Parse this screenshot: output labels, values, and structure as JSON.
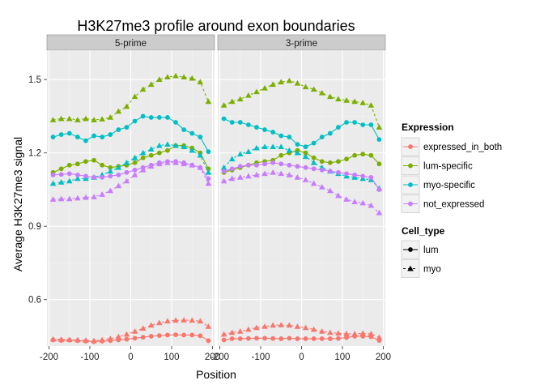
{
  "chart_data": {
    "type": "line",
    "title": "H3K27me3 profile around exon boundaries",
    "xlabel": "Position",
    "ylabel": "Average H3K27me3 signal",
    "xlim": [
      -205,
      205
    ],
    "ylim": [
      0.41,
      1.62
    ],
    "x_ticks": [
      -200,
      -100,
      0,
      100,
      200
    ],
    "x_tick_labels": [
      "-200",
      "-100",
      "0",
      "100",
      "200"
    ],
    "y_ticks": [
      0.6,
      0.9,
      1.2,
      1.5
    ],
    "y_tick_labels": [
      "0.6",
      "0.9",
      "1.2",
      "1.5"
    ],
    "grid": true,
    "panels": [
      "5-prime",
      "3-prime"
    ],
    "x": [
      -190,
      -170,
      -150,
      -130,
      -110,
      -90,
      -70,
      -50,
      -30,
      -10,
      10,
      30,
      50,
      70,
      90,
      110,
      130,
      150,
      170,
      190
    ],
    "legend_expression": {
      "title": "Expression",
      "entries": [
        {
          "label": "expressed_in_both",
          "color": "#F8766D"
        },
        {
          "label": "lum-specific",
          "color": "#7CAE00"
        },
        {
          "label": "myo-specific",
          "color": "#00BFC4"
        },
        {
          "label": "not_expressed",
          "color": "#C77CFF"
        }
      ]
    },
    "legend_cell_type": {
      "title": "Cell_type",
      "entries": [
        {
          "label": "lum",
          "shape": "circle",
          "linetype": "solid"
        },
        {
          "label": "myo",
          "shape": "triangle",
          "linetype": "dashed"
        }
      ]
    },
    "series": [
      {
        "panel": "5-prime",
        "expression": "expressed_in_both",
        "cell_type": "lum",
        "values": [
          0.435,
          0.433,
          0.434,
          0.432,
          0.43,
          0.428,
          0.43,
          0.432,
          0.435,
          0.438,
          0.442,
          0.446,
          0.45,
          0.453,
          0.455,
          0.456,
          0.455,
          0.455,
          0.452,
          0.432
        ]
      },
      {
        "panel": "5-prime",
        "expression": "expressed_in_both",
        "cell_type": "myo",
        "values": [
          0.438,
          0.437,
          0.436,
          0.435,
          0.433,
          0.432,
          0.435,
          0.44,
          0.448,
          0.458,
          0.47,
          0.482,
          0.495,
          0.505,
          0.512,
          0.515,
          0.516,
          0.515,
          0.512,
          0.49
        ]
      },
      {
        "panel": "5-prime",
        "expression": "lum-specific",
        "cell_type": "lum",
        "values": [
          1.12,
          1.135,
          1.15,
          1.155,
          1.165,
          1.17,
          1.15,
          1.14,
          1.145,
          1.15,
          1.16,
          1.18,
          1.19,
          1.2,
          1.21,
          1.23,
          1.23,
          1.22,
          1.2,
          1.135
        ]
      },
      {
        "panel": "5-prime",
        "expression": "lum-specific",
        "cell_type": "myo",
        "values": [
          1.335,
          1.34,
          1.34,
          1.335,
          1.34,
          1.335,
          1.338,
          1.345,
          1.37,
          1.39,
          1.43,
          1.46,
          1.48,
          1.5,
          1.51,
          1.515,
          1.51,
          1.505,
          1.49,
          1.41
        ]
      },
      {
        "panel": "5-prime",
        "expression": "myo-specific",
        "cell_type": "lum",
        "values": [
          1.265,
          1.275,
          1.28,
          1.265,
          1.25,
          1.27,
          1.265,
          1.275,
          1.295,
          1.305,
          1.33,
          1.35,
          1.345,
          1.345,
          1.345,
          1.325,
          1.295,
          1.28,
          1.265,
          1.205
        ]
      },
      {
        "panel": "5-prime",
        "expression": "myo-specific",
        "cell_type": "myo",
        "values": [
          1.075,
          1.08,
          1.085,
          1.095,
          1.095,
          1.1,
          1.11,
          1.125,
          1.14,
          1.16,
          1.18,
          1.2,
          1.215,
          1.23,
          1.235,
          1.23,
          1.225,
          1.21,
          1.19,
          1.12
        ]
      },
      {
        "panel": "5-prime",
        "expression": "not_expressed",
        "cell_type": "lum",
        "values": [
          1.11,
          1.112,
          1.115,
          1.11,
          1.105,
          1.1,
          1.1,
          1.105,
          1.11,
          1.12,
          1.13,
          1.14,
          1.15,
          1.16,
          1.165,
          1.165,
          1.16,
          1.15,
          1.14,
          1.095
        ]
      },
      {
        "panel": "5-prime",
        "expression": "not_expressed",
        "cell_type": "myo",
        "values": [
          1.01,
          1.012,
          1.012,
          1.015,
          1.018,
          1.02,
          1.03,
          1.045,
          1.065,
          1.085,
          1.11,
          1.13,
          1.145,
          1.155,
          1.16,
          1.16,
          1.155,
          1.15,
          1.14,
          1.075
        ]
      },
      {
        "panel": "3-prime",
        "expression": "expressed_in_both",
        "cell_type": "lum",
        "values": [
          0.435,
          0.44,
          0.44,
          0.441,
          0.442,
          0.442,
          0.441,
          0.44,
          0.442,
          0.44,
          0.44,
          0.44,
          0.44,
          0.44,
          0.441,
          0.445,
          0.45,
          0.45,
          0.448,
          0.433
        ]
      },
      {
        "panel": "3-prime",
        "expression": "expressed_in_both",
        "cell_type": "myo",
        "values": [
          0.458,
          0.465,
          0.47,
          0.478,
          0.485,
          0.49,
          0.495,
          0.496,
          0.495,
          0.49,
          0.485,
          0.478,
          0.47,
          0.465,
          0.462,
          0.46,
          0.46,
          0.462,
          0.46,
          0.445
        ]
      },
      {
        "panel": "3-prime",
        "expression": "lum-specific",
        "cell_type": "lum",
        "values": [
          1.12,
          1.13,
          1.14,
          1.15,
          1.16,
          1.165,
          1.17,
          1.19,
          1.2,
          1.21,
          1.2,
          1.18,
          1.165,
          1.16,
          1.165,
          1.175,
          1.19,
          1.195,
          1.19,
          1.155
        ]
      },
      {
        "panel": "3-prime",
        "expression": "lum-specific",
        "cell_type": "myo",
        "values": [
          1.395,
          1.41,
          1.42,
          1.435,
          1.45,
          1.465,
          1.48,
          1.49,
          1.495,
          1.485,
          1.47,
          1.46,
          1.445,
          1.43,
          1.42,
          1.415,
          1.41,
          1.405,
          1.395,
          1.305
        ]
      },
      {
        "panel": "3-prime",
        "expression": "myo-specific",
        "cell_type": "lum",
        "values": [
          1.34,
          1.325,
          1.325,
          1.315,
          1.305,
          1.295,
          1.285,
          1.27,
          1.265,
          1.235,
          1.225,
          1.24,
          1.265,
          1.28,
          1.305,
          1.325,
          1.325,
          1.315,
          1.315,
          1.255
        ]
      },
      {
        "panel": "3-prime",
        "expression": "myo-specific",
        "cell_type": "myo",
        "values": [
          1.14,
          1.175,
          1.195,
          1.205,
          1.22,
          1.225,
          1.225,
          1.225,
          1.21,
          1.2,
          1.185,
          1.16,
          1.14,
          1.125,
          1.115,
          1.105,
          1.1,
          1.095,
          1.09,
          1.055
        ]
      },
      {
        "panel": "3-prime",
        "expression": "not_expressed",
        "cell_type": "lum",
        "values": [
          1.125,
          1.135,
          1.145,
          1.15,
          1.15,
          1.155,
          1.16,
          1.155,
          1.15,
          1.145,
          1.14,
          1.135,
          1.13,
          1.125,
          1.12,
          1.115,
          1.11,
          1.105,
          1.1,
          1.05
        ]
      },
      {
        "panel": "3-prime",
        "expression": "not_expressed",
        "cell_type": "myo",
        "values": [
          1.085,
          1.095,
          1.1,
          1.105,
          1.11,
          1.115,
          1.12,
          1.115,
          1.11,
          1.1,
          1.09,
          1.075,
          1.06,
          1.045,
          1.025,
          1.01,
          1.0,
          0.995,
          0.985,
          0.955
        ]
      }
    ]
  },
  "colors": {
    "panel_bg": "#ebebeb",
    "grid_major": "#ffffff",
    "strip_bg": "#cccccc",
    "text": "#000000"
  }
}
